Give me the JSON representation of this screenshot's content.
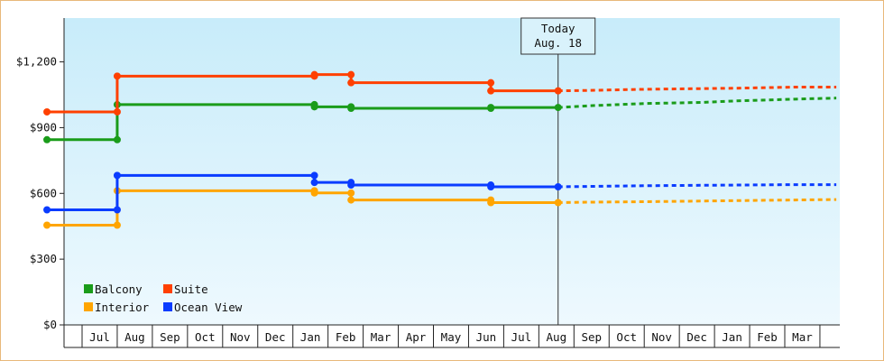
{
  "chart_data": {
    "type": "line",
    "step": true,
    "currency_prefix": "$",
    "y_ticks": [
      0,
      300,
      600,
      900,
      1200
    ],
    "y_tick_labels": [
      "$0",
      "$300",
      "$600",
      "$900",
      "$1,200"
    ],
    "ylim": [
      0,
      1400
    ],
    "x_tick_labels": [
      "Jul",
      "Aug",
      "Sep",
      "Oct",
      "Nov",
      "Dec",
      "Jan",
      "Feb",
      "Mar",
      "Apr",
      "May",
      "Jun",
      "Jul",
      "Aug",
      "Sep",
      "Oct",
      "Nov",
      "Dec",
      "Jan",
      "Feb",
      "Mar"
    ],
    "grid": false,
    "legend_position": "bottom-left",
    "today_marker": {
      "line1": "Today",
      "line2": "Aug. 18",
      "date": "2024-08-18"
    },
    "series": [
      {
        "name": "Balcony",
        "color": "#1a9c1a",
        "history": [
          [
            "2023-06-01",
            845
          ],
          [
            "2023-08-01",
            845
          ],
          [
            "2023-08-01",
            1005
          ],
          [
            "2024-01-20",
            1005
          ],
          [
            "2024-01-20",
            995
          ],
          [
            "2024-02-20",
            995
          ],
          [
            "2024-02-20",
            988
          ],
          [
            "2024-06-20",
            988
          ],
          [
            "2024-06-20",
            992
          ],
          [
            "2024-08-18",
            992
          ]
        ],
        "forecast": [
          [
            "2024-08-18",
            992
          ],
          [
            "2024-09-15",
            1000
          ],
          [
            "2024-11-01",
            1010
          ],
          [
            "2024-12-20",
            1015
          ],
          [
            "2025-01-20",
            1022
          ],
          [
            "2025-03-10",
            1030
          ],
          [
            "2025-04-15",
            1035
          ]
        ]
      },
      {
        "name": "Suite",
        "color": "#ff4000",
        "history": [
          [
            "2023-06-01",
            972
          ],
          [
            "2023-08-01",
            972
          ],
          [
            "2023-08-01",
            1135
          ],
          [
            "2024-01-20",
            1135
          ],
          [
            "2024-01-20",
            1142
          ],
          [
            "2024-02-20",
            1142
          ],
          [
            "2024-02-20",
            1105
          ],
          [
            "2024-06-20",
            1105
          ],
          [
            "2024-06-20",
            1068
          ],
          [
            "2024-08-18",
            1068
          ]
        ],
        "forecast": [
          [
            "2024-08-18",
            1068
          ],
          [
            "2024-09-15",
            1070
          ],
          [
            "2024-11-01",
            1075
          ],
          [
            "2024-12-20",
            1078
          ],
          [
            "2025-01-20",
            1080
          ],
          [
            "2025-03-10",
            1085
          ],
          [
            "2025-04-15",
            1085
          ]
        ]
      },
      {
        "name": "Interior",
        "color": "#ffa500",
        "history": [
          [
            "2023-06-01",
            455
          ],
          [
            "2023-08-01",
            455
          ],
          [
            "2023-08-01",
            612
          ],
          [
            "2024-01-20",
            612
          ],
          [
            "2024-01-20",
            602
          ],
          [
            "2024-02-20",
            602
          ],
          [
            "2024-02-20",
            570
          ],
          [
            "2024-06-20",
            570
          ],
          [
            "2024-06-20",
            558
          ],
          [
            "2024-08-18",
            558
          ]
        ],
        "forecast": [
          [
            "2024-08-18",
            558
          ],
          [
            "2024-09-15",
            560
          ],
          [
            "2024-11-01",
            562
          ],
          [
            "2024-12-20",
            565
          ],
          [
            "2025-01-20",
            567
          ],
          [
            "2025-03-10",
            570
          ],
          [
            "2025-04-15",
            572
          ]
        ]
      },
      {
        "name": "Ocean View",
        "color": "#0a3cff",
        "history": [
          [
            "2023-06-01",
            525
          ],
          [
            "2023-08-01",
            525
          ],
          [
            "2023-08-01",
            682
          ],
          [
            "2024-01-20",
            682
          ],
          [
            "2024-01-20",
            650
          ],
          [
            "2024-02-20",
            650
          ],
          [
            "2024-02-20",
            638
          ],
          [
            "2024-06-20",
            638
          ],
          [
            "2024-06-20",
            630
          ],
          [
            "2024-08-18",
            630
          ]
        ],
        "forecast": [
          [
            "2024-08-18",
            630
          ],
          [
            "2024-09-15",
            632
          ],
          [
            "2024-11-01",
            635
          ],
          [
            "2024-12-20",
            637
          ],
          [
            "2025-01-20",
            638
          ],
          [
            "2025-03-10",
            640
          ],
          [
            "2025-04-15",
            640
          ]
        ]
      }
    ]
  }
}
